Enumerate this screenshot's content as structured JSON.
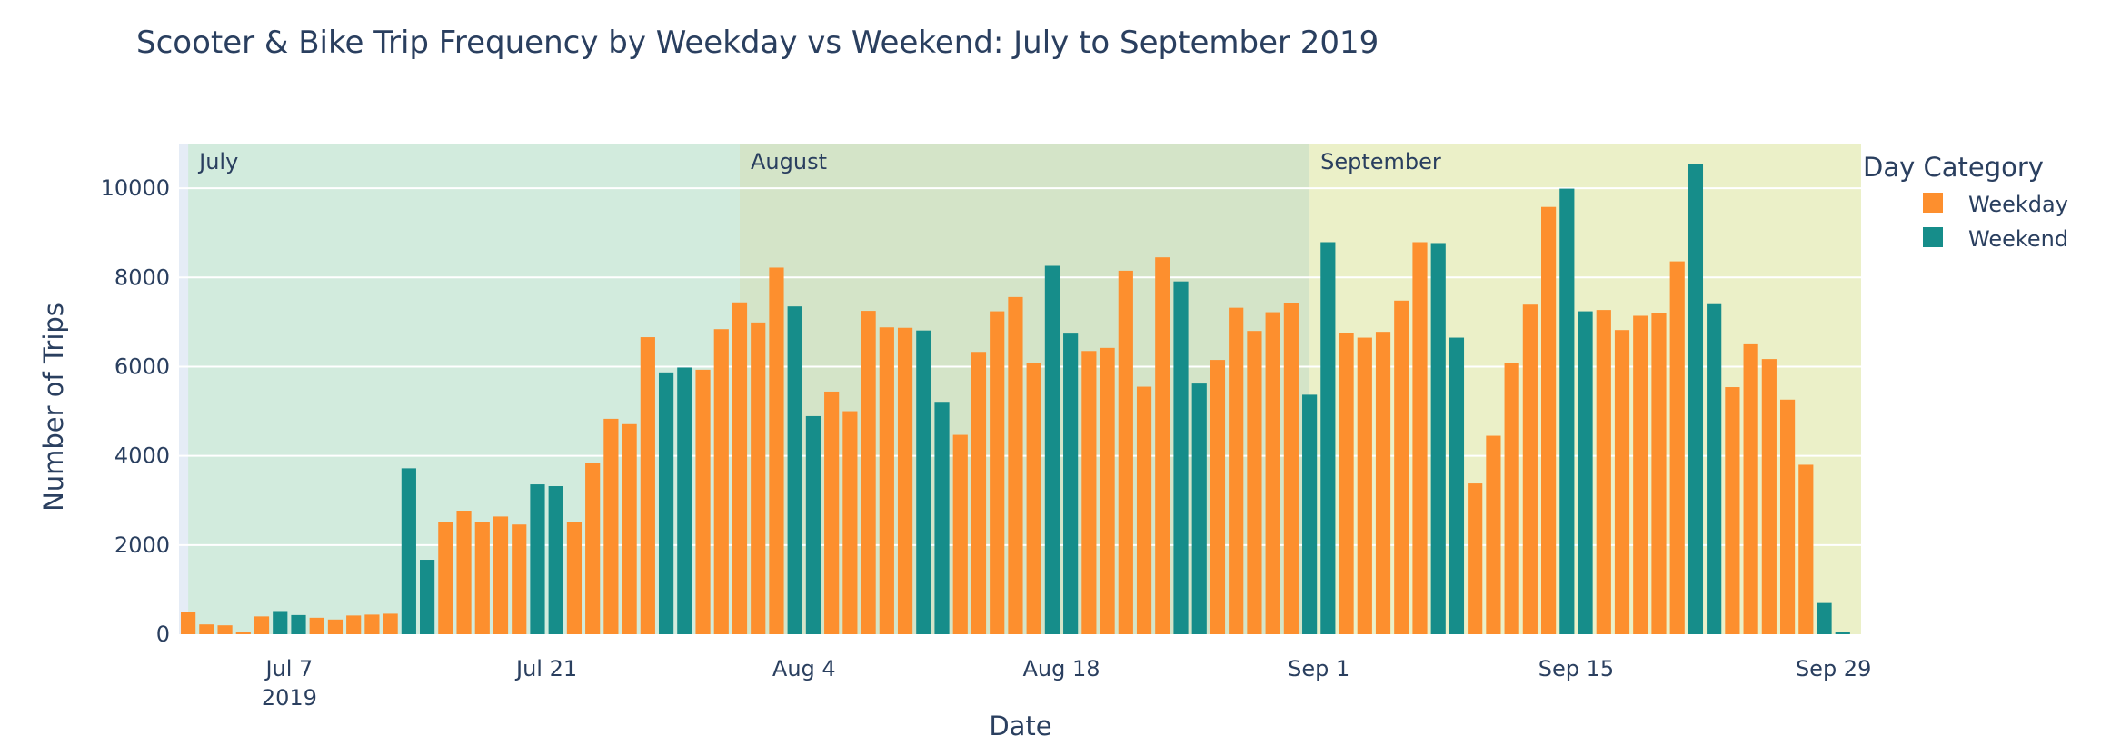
{
  "chart_data": {
    "type": "bar",
    "title": "Scooter & Bike Trip Frequency by Weekday vs Weekend: July to September 2019",
    "xlabel": "Date",
    "ylabel": "Number of Trips",
    "x_start": "2019-07-01",
    "x_end": "2019-09-30",
    "ylim": [
      0,
      11000
    ],
    "yticks": [
      0,
      2000,
      4000,
      6000,
      8000,
      10000
    ],
    "y_tick_labels": [
      "0",
      "2000",
      "4000",
      "6000",
      "8000",
      "10000"
    ],
    "xticks": [
      {
        "date": "2019-07-07",
        "label": "Jul 7",
        "sublabel": "2019"
      },
      {
        "date": "2019-07-21",
        "label": "Jul 21",
        "sublabel": ""
      },
      {
        "date": "2019-08-04",
        "label": "Aug 4",
        "sublabel": ""
      },
      {
        "date": "2019-08-18",
        "label": "Aug 18",
        "sublabel": ""
      },
      {
        "date": "2019-09-01",
        "label": "Sep 1",
        "sublabel": ""
      },
      {
        "date": "2019-09-15",
        "label": "Sep 15",
        "sublabel": ""
      },
      {
        "date": "2019-09-29",
        "label": "Sep 29",
        "sublabel": ""
      }
    ],
    "grid": true,
    "legend": {
      "title": "Day Category",
      "placement": "top-right",
      "items": [
        {
          "name": "Weekday",
          "color": "#fd8f2e"
        },
        {
          "name": "Weekend",
          "color": "#168d8a"
        }
      ]
    },
    "months": [
      {
        "label": "July",
        "start": "2019-07-01",
        "end": "2019-07-31",
        "color": "#d2ebdd"
      },
      {
        "label": "August",
        "start": "2019-07-31",
        "end": "2019-08-31",
        "color": "#d4e4c8"
      },
      {
        "label": "September",
        "start": "2019-08-31",
        "end": "2019-09-30",
        "color": "#ebf0c8"
      }
    ],
    "dates": [
      "2019-07-01",
      "2019-07-02",
      "2019-07-03",
      "2019-07-04",
      "2019-07-05",
      "2019-07-06",
      "2019-07-07",
      "2019-07-08",
      "2019-07-09",
      "2019-07-10",
      "2019-07-11",
      "2019-07-12",
      "2019-07-13",
      "2019-07-14",
      "2019-07-15",
      "2019-07-16",
      "2019-07-17",
      "2019-07-18",
      "2019-07-19",
      "2019-07-20",
      "2019-07-21",
      "2019-07-22",
      "2019-07-23",
      "2019-07-24",
      "2019-07-25",
      "2019-07-26",
      "2019-07-27",
      "2019-07-28",
      "2019-07-29",
      "2019-07-30",
      "2019-07-31",
      "2019-08-01",
      "2019-08-02",
      "2019-08-03",
      "2019-08-04",
      "2019-08-05",
      "2019-08-06",
      "2019-08-07",
      "2019-08-08",
      "2019-08-09",
      "2019-08-10",
      "2019-08-11",
      "2019-08-12",
      "2019-08-13",
      "2019-08-14",
      "2019-08-15",
      "2019-08-16",
      "2019-08-17",
      "2019-08-18",
      "2019-08-19",
      "2019-08-20",
      "2019-08-21",
      "2019-08-22",
      "2019-08-23",
      "2019-08-24",
      "2019-08-25",
      "2019-08-26",
      "2019-08-27",
      "2019-08-28",
      "2019-08-29",
      "2019-08-30",
      "2019-08-31",
      "2019-09-01",
      "2019-09-02",
      "2019-09-03",
      "2019-09-04",
      "2019-09-05",
      "2019-09-06",
      "2019-09-07",
      "2019-09-08",
      "2019-09-09",
      "2019-09-10",
      "2019-09-11",
      "2019-09-12",
      "2019-09-13",
      "2019-09-14",
      "2019-09-15",
      "2019-09-16",
      "2019-09-17",
      "2019-09-18",
      "2019-09-19",
      "2019-09-20",
      "2019-09-21",
      "2019-09-22",
      "2019-09-23",
      "2019-09-24",
      "2019-09-25",
      "2019-09-26",
      "2019-09-27",
      "2019-09-28",
      "2019-09-29"
    ],
    "values": [
      500,
      220,
      200,
      60,
      400,
      520,
      430,
      370,
      330,
      420,
      440,
      460,
      3720,
      1670,
      2520,
      2770,
      2520,
      2640,
      2460,
      3360,
      3320,
      2520,
      3830,
      4830,
      4710,
      6660,
      5870,
      5980,
      5930,
      6840,
      7440,
      6990,
      8220,
      7350,
      4890,
      5440,
      5000,
      7250,
      6880,
      6870,
      6810,
      5210,
      4470,
      6330,
      7240,
      7560,
      6090,
      8260,
      6740,
      6350,
      6420,
      8150,
      5550,
      8450,
      7910,
      5620,
      6150,
      7320,
      6800,
      7220,
      7420,
      5370,
      8790,
      6750,
      6650,
      6780,
      7480,
      8790,
      8770,
      6650,
      3380,
      4450,
      6080,
      7390,
      9580,
      9990,
      7240,
      7270,
      6820,
      7140,
      7200,
      8360,
      10540,
      7400,
      5540,
      6500,
      6170,
      5260,
      3800,
      700,
      50
    ],
    "categories": [
      "Weekday",
      "Weekday",
      "Weekday",
      "Weekday",
      "Weekday",
      "Weekend",
      "Weekend",
      "Weekday",
      "Weekday",
      "Weekday",
      "Weekday",
      "Weekday",
      "Weekend",
      "Weekend",
      "Weekday",
      "Weekday",
      "Weekday",
      "Weekday",
      "Weekday",
      "Weekend",
      "Weekend",
      "Weekday",
      "Weekday",
      "Weekday",
      "Weekday",
      "Weekday",
      "Weekend",
      "Weekend",
      "Weekday",
      "Weekday",
      "Weekday",
      "Weekday",
      "Weekday",
      "Weekend",
      "Weekend",
      "Weekday",
      "Weekday",
      "Weekday",
      "Weekday",
      "Weekday",
      "Weekend",
      "Weekend",
      "Weekday",
      "Weekday",
      "Weekday",
      "Weekday",
      "Weekday",
      "Weekend",
      "Weekend",
      "Weekday",
      "Weekday",
      "Weekday",
      "Weekday",
      "Weekday",
      "Weekend",
      "Weekend",
      "Weekday",
      "Weekday",
      "Weekday",
      "Weekday",
      "Weekday",
      "Weekend",
      "Weekend",
      "Weekday",
      "Weekday",
      "Weekday",
      "Weekday",
      "Weekday",
      "Weekend",
      "Weekend",
      "Weekday",
      "Weekday",
      "Weekday",
      "Weekday",
      "Weekday",
      "Weekend",
      "Weekend",
      "Weekday",
      "Weekday",
      "Weekday",
      "Weekday",
      "Weekday",
      "Weekend",
      "Weekend",
      "Weekday",
      "Weekday",
      "Weekday",
      "Weekday",
      "Weekday",
      "Weekend",
      "Weekend"
    ],
    "colors": {
      "background": "#e5ecf6",
      "grid": "#ffffff",
      "text": "#2a3f5f"
    }
  }
}
